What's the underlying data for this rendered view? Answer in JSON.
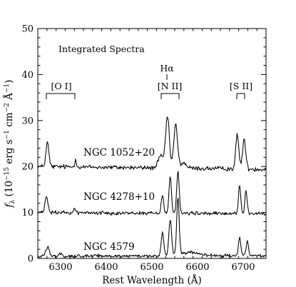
{
  "chart_data": {
    "type": "line",
    "title": "Integrated Spectra",
    "xlabel": "Rest Wavelength (Å)",
    "ylabel": "f_λ (10^-15 erg s^-1 cm^-2 Å^-1)",
    "xlim": [
      6250,
      6750
    ],
    "ylim": [
      0,
      50
    ],
    "xticks": [
      6300,
      6400,
      6500,
      6600,
      6700
    ],
    "yticks": [
      0,
      10,
      20,
      30,
      40,
      50
    ],
    "grid": false,
    "series": [
      {
        "name": "NGC 1052+20",
        "baseline": 20,
        "noise": 0.45,
        "continuum_slope": -0.6,
        "lines": [
          {
            "center": 6271,
            "sigma": 3.2,
            "peak": 5.2
          },
          {
            "center": 6333,
            "sigma": 2.2,
            "peak": 1.5
          },
          {
            "center": 6519,
            "sigma": 5.5,
            "peak": 2.5
          },
          {
            "center": 6534,
            "sigma": 4.2,
            "peak": 11.0
          },
          {
            "center": 6552,
            "sigma": 4.0,
            "peak": 9.5
          },
          {
            "center": 6569,
            "sigma": 6.0,
            "peak": 1.2
          },
          {
            "center": 6687,
            "sigma": 3.4,
            "peak": 7.3
          },
          {
            "center": 6702,
            "sigma": 3.4,
            "peak": 6.5
          }
        ]
      },
      {
        "name": "NGC 4278+10",
        "baseline": 10,
        "noise": 0.35,
        "continuum_slope": -0.3,
        "lines": [
          {
            "center": 6269,
            "sigma": 3.0,
            "peak": 3.6
          },
          {
            "center": 6331,
            "sigma": 2.0,
            "peak": 1.0
          },
          {
            "center": 6523,
            "sigma": 2.6,
            "peak": 4.0
          },
          {
            "center": 6540,
            "sigma": 2.7,
            "peak": 8.2
          },
          {
            "center": 6557,
            "sigma": 2.7,
            "peak": 9.2
          },
          {
            "center": 6692,
            "sigma": 2.5,
            "peak": 6.2
          },
          {
            "center": 6706,
            "sigma": 2.5,
            "peak": 5.0
          }
        ]
      },
      {
        "name": "NGC 4579",
        "baseline": 0.5,
        "noise": 0.3,
        "continuum_slope": 0.1,
        "lines": [
          {
            "center": 6271,
            "sigma": 4.0,
            "peak": 2.0
          },
          {
            "center": 6300,
            "sigma": 3.0,
            "peak": 0.6
          },
          {
            "center": 6523,
            "sigma": 2.8,
            "peak": 5.0
          },
          {
            "center": 6540,
            "sigma": 3.0,
            "peak": 7.8
          },
          {
            "center": 6557,
            "sigma": 2.7,
            "peak": 12.8
          },
          {
            "center": 6585,
            "sigma": 18.0,
            "peak": 0.7
          },
          {
            "center": 6692,
            "sigma": 2.6,
            "peak": 4.0
          },
          {
            "center": 6709,
            "sigma": 2.6,
            "peak": 3.2
          }
        ]
      }
    ],
    "annotations": {
      "panel_title": "Integrated Spectra",
      "halpha": "Hα",
      "oi": "[O I]",
      "nii": "[N II]",
      "sii": "[S II]"
    }
  }
}
